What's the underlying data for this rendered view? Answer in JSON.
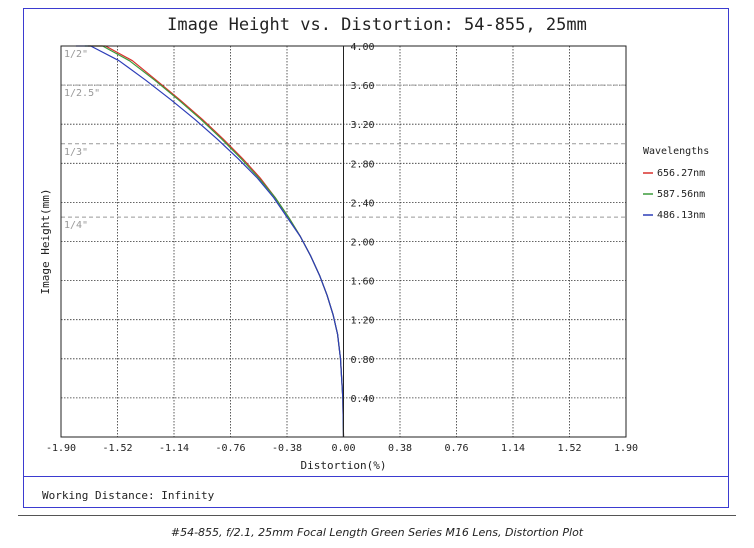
{
  "chart_data": {
    "type": "line",
    "title": "Image Height vs. Distortion: 54-855, 25mm",
    "xlabel": "Distortion(%)",
    "ylabel": "Image Height(mm)",
    "xlim": [
      -1.9,
      1.9
    ],
    "ylim": [
      0,
      4.0
    ],
    "x_ticks": [
      "-1.90",
      "-1.52",
      "-1.14",
      "-0.76",
      "-0.38",
      "0.00",
      "0.38",
      "0.76",
      "1.14",
      "1.52",
      "1.90"
    ],
    "y_ticks": [
      "0.40",
      "0.80",
      "1.20",
      "1.60",
      "2.00",
      "2.40",
      "2.80",
      "3.20",
      "3.60",
      "4.00"
    ],
    "grid": true,
    "legend": {
      "title": "Wavelengths",
      "position": "right"
    },
    "sensor_lines": [
      {
        "label": "1/2\"",
        "y": 4.0
      },
      {
        "label": "1/2.5\"",
        "y": 3.6
      },
      {
        "label": "1/3\"",
        "y": 3.0
      },
      {
        "label": "1/4\"",
        "y": 2.25
      }
    ],
    "series": [
      {
        "name": "656.27nm",
        "color": "#d9302c",
        "x": [
          0,
          -0.005,
          -0.02,
          -0.04,
          -0.07,
          -0.11,
          -0.16,
          -0.22,
          -0.29,
          -0.37,
          -0.46,
          -0.56,
          -0.68,
          -0.81,
          -0.95,
          -1.1,
          -1.26,
          -1.42,
          -1.6,
          -1.72
        ],
        "y": [
          0,
          0.4,
          0.8,
          1.05,
          1.25,
          1.45,
          1.65,
          1.85,
          2.05,
          2.25,
          2.45,
          2.65,
          2.85,
          3.05,
          3.25,
          3.45,
          3.65,
          3.85,
          4.05,
          4.16
        ]
      },
      {
        "name": "587.56nm",
        "color": "#3a9a3a",
        "x": [
          0,
          -0.005,
          -0.02,
          -0.04,
          -0.07,
          -0.11,
          -0.16,
          -0.22,
          -0.29,
          -0.37,
          -0.46,
          -0.57,
          -0.69,
          -0.82,
          -0.96,
          -1.11,
          -1.27,
          -1.44,
          -1.62,
          -1.74
        ],
        "y": [
          0,
          0.4,
          0.8,
          1.05,
          1.25,
          1.45,
          1.65,
          1.85,
          2.05,
          2.25,
          2.45,
          2.65,
          2.85,
          3.05,
          3.25,
          3.45,
          3.65,
          3.85,
          4.05,
          4.16
        ]
      },
      {
        "name": "486.13nm",
        "color": "#2c3db8",
        "x": [
          0,
          -0.005,
          -0.02,
          -0.04,
          -0.07,
          -0.11,
          -0.16,
          -0.22,
          -0.29,
          -0.38,
          -0.47,
          -0.58,
          -0.71,
          -0.85,
          -1.0,
          -1.16,
          -1.33,
          -1.51,
          -1.7,
          -1.8
        ],
        "y": [
          0,
          0.4,
          0.8,
          1.05,
          1.25,
          1.45,
          1.65,
          1.85,
          2.05,
          2.25,
          2.45,
          2.65,
          2.85,
          3.05,
          3.25,
          3.45,
          3.65,
          3.85,
          4.05,
          4.14
        ]
      }
    ]
  },
  "footer": {
    "working_distance": "Working Distance: Infinity"
  },
  "caption": "#54-855, f/2.1, 25mm Focal Length Green Series M16 Lens, Distortion Plot"
}
